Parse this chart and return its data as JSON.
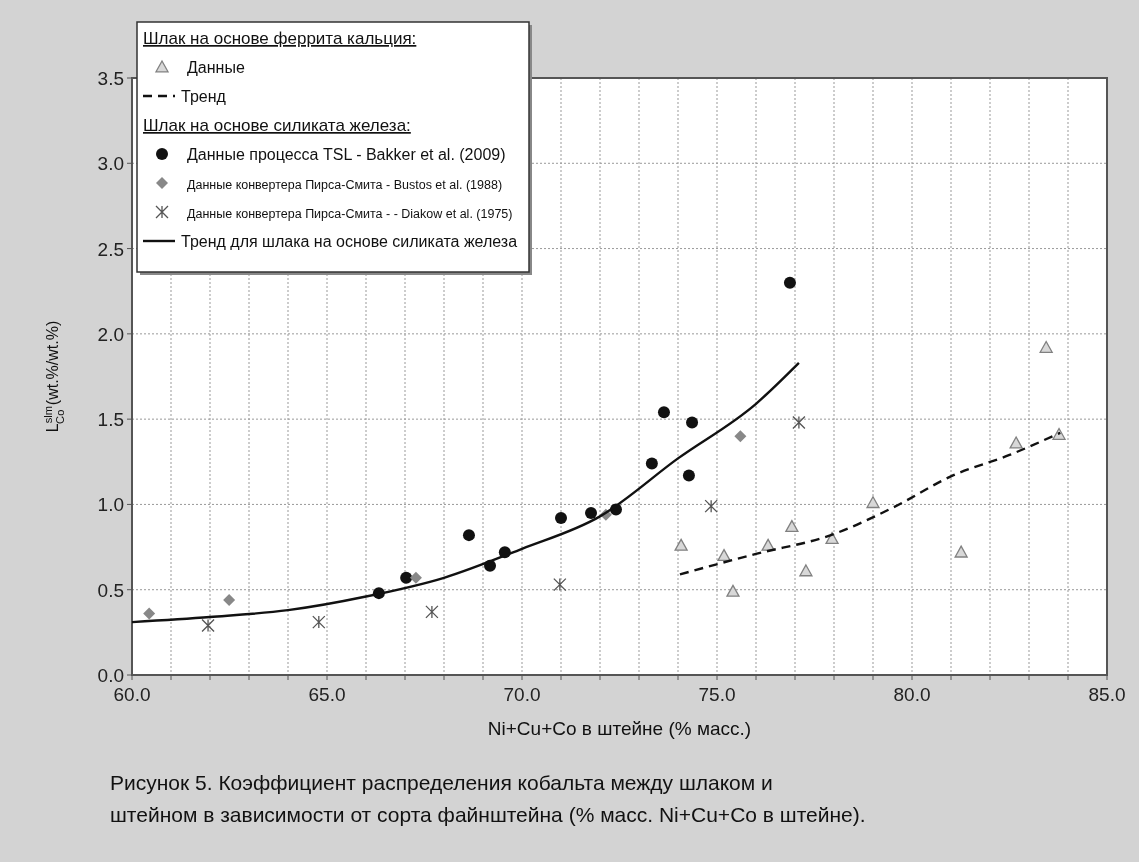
{
  "chart_data": {
    "type": "scatter",
    "xlabel": "Ni+Cu+Co в штейне (% масс.)",
    "ylabel": "L$^{slm}$$_{Co}$ (wt.%/wt.%)",
    "xlim": [
      60,
      85
    ],
    "ylim": [
      0,
      3.5
    ],
    "xticks": [
      {
        "value": 60,
        "label": "60.0"
      },
      {
        "value": 61,
        "label": null
      },
      {
        "value": 62,
        "label": null
      },
      {
        "value": 63,
        "label": null
      },
      {
        "value": 64,
        "label": null
      },
      {
        "value": 65,
        "label": "65.0"
      },
      {
        "value": 66,
        "label": null
      },
      {
        "value": 67,
        "label": null
      },
      {
        "value": 68,
        "label": null
      },
      {
        "value": 69,
        "label": null
      },
      {
        "value": 70,
        "label": "70.0"
      },
      {
        "value": 71,
        "label": null
      },
      {
        "value": 72,
        "label": null
      },
      {
        "value": 73,
        "label": null
      },
      {
        "value": 74,
        "label": null
      },
      {
        "value": 75,
        "label": "75.0"
      },
      {
        "value": 76,
        "label": null
      },
      {
        "value": 77,
        "label": null
      },
      {
        "value": 78,
        "label": null
      },
      {
        "value": 79,
        "label": null
      },
      {
        "value": 80,
        "label": "80.0"
      },
      {
        "value": 81,
        "label": null
      },
      {
        "value": 82,
        "label": null
      },
      {
        "value": 83,
        "label": null
      },
      {
        "value": 84,
        "label": null
      },
      {
        "value": 85,
        "label": "85.0"
      }
    ],
    "yticks": [
      {
        "value": 0,
        "label": "0.0"
      },
      {
        "value": 0.5,
        "label": "0.5"
      },
      {
        "value": 1,
        "label": "1.0"
      },
      {
        "value": 1.5,
        "label": "1.5"
      },
      {
        "value": 2,
        "label": "2.0"
      },
      {
        "value": 2.5,
        "label": "2.5"
      },
      {
        "value": 3,
        "label": "3.0"
      },
      {
        "value": 3.5,
        "label": "3.5"
      }
    ],
    "grid": true,
    "legend": "top left",
    "annotations": [
      "Шлак на основе феррита кальция:",
      "Шлак на основе силиката железа:",
      "Рисунок 5. Коэффициент распределения кобальта между шлаком и штейном в зависимости от сорта файнштейна (% масс. Ni+Cu+Co в штейне)."
    ],
    "series": [
      {
        "name": "Данные",
        "marker": "triangle",
        "color": "#808080",
        "x": [
          74.08,
          75.18,
          75.41,
          76.31,
          76.92,
          77.28,
          77.95,
          79.0,
          81.26,
          82.67,
          83.44,
          83.77
        ],
        "values": [
          0.76,
          0.7,
          0.49,
          0.76,
          0.87,
          0.61,
          0.8,
          1.01,
          0.72,
          1.36,
          1.92,
          1.41
        ]
      },
      {
        "name": "Тренд",
        "type": "line",
        "line_style": "dashed",
        "marker": "none",
        "color": "#111111",
        "x": [
          74.05,
          76,
          77.92,
          79.5,
          81.05,
          82.5,
          83.8
        ],
        "values": [
          0.59,
          0.71,
          0.82,
          0.98,
          1.17,
          1.29,
          1.42
        ]
      },
      {
        "name": "Данные процесса TSL - Bakker et al. (2009)",
        "marker": "circle",
        "color": "#111111",
        "x": [
          66.33,
          67.03,
          68.64,
          69.18,
          69.56,
          71.0,
          71.77,
          72.41,
          73.33,
          73.64,
          74.36,
          74.28,
          76.87
        ],
        "values": [
          0.48,
          0.57,
          0.82,
          0.64,
          0.72,
          0.92,
          0.95,
          0.97,
          1.24,
          1.54,
          1.48,
          1.17,
          2.3
        ]
      },
      {
        "name": "Данные конвертера Пирса-Смита - Bustos et al. (1988)",
        "marker": "diamond",
        "color": "#888888",
        "x": [
          60.44,
          62.49,
          67.28,
          72.15,
          75.6
        ],
        "values": [
          0.36,
          0.44,
          0.57,
          0.94,
          1.4
        ]
      },
      {
        "name": "Данные конвертера Пирса-Смита - - Diakow et al. (1975)",
        "marker": "cross",
        "color": "#555555",
        "x": [
          61.95,
          64.79,
          67.69,
          70.97,
          74.85,
          77.1
        ],
        "values": [
          0.29,
          0.31,
          0.37,
          0.53,
          0.99,
          1.48
        ]
      },
      {
        "name": "Тренд для шлака на основе силиката железа",
        "type": "line",
        "line_style": "solid",
        "marker": "none",
        "color": "#111111",
        "x": [
          60,
          62,
          64,
          66,
          68,
          70,
          72,
          74,
          76,
          77.1
        ],
        "values": [
          0.31,
          0.34,
          0.38,
          0.46,
          0.57,
          0.74,
          0.93,
          1.27,
          1.59,
          1.83
        ]
      }
    ]
  }
}
